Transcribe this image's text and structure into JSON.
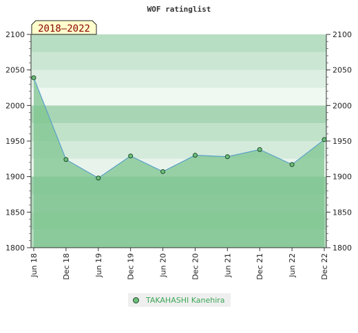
{
  "chart_data": {
    "type": "area",
    "title": "WOF ratinglist",
    "period_badge": "2018–2022",
    "x": [
      "Jun 18",
      "Dec 18",
      "Jun 19",
      "Dec 19",
      "Jun 20",
      "Dec 20",
      "Jun 21",
      "Dec 21",
      "Jun 22",
      "Dec 22"
    ],
    "series": [
      {
        "name": "TAKAHASHI Kanehira",
        "values": [
          2039,
          1924,
          1898,
          1929,
          1907,
          1930,
          1928,
          1938,
          1917,
          1952
        ]
      }
    ],
    "ylim": [
      1800,
      2100
    ],
    "yticks": [
      1800,
      1850,
      1900,
      1950,
      2000,
      2050,
      2100
    ],
    "xlabel": "",
    "ylabel": "",
    "legend_position": "bottom-center",
    "grid": true,
    "colors": {
      "line": "#5aa0c8",
      "area": "#7dc48f",
      "marker": "#6bbf7c",
      "marker_stroke": "#1f4a29",
      "badge_bg": "#ffffcc",
      "badge_text": "#8b0000",
      "legend_text": "#3aa655"
    }
  }
}
